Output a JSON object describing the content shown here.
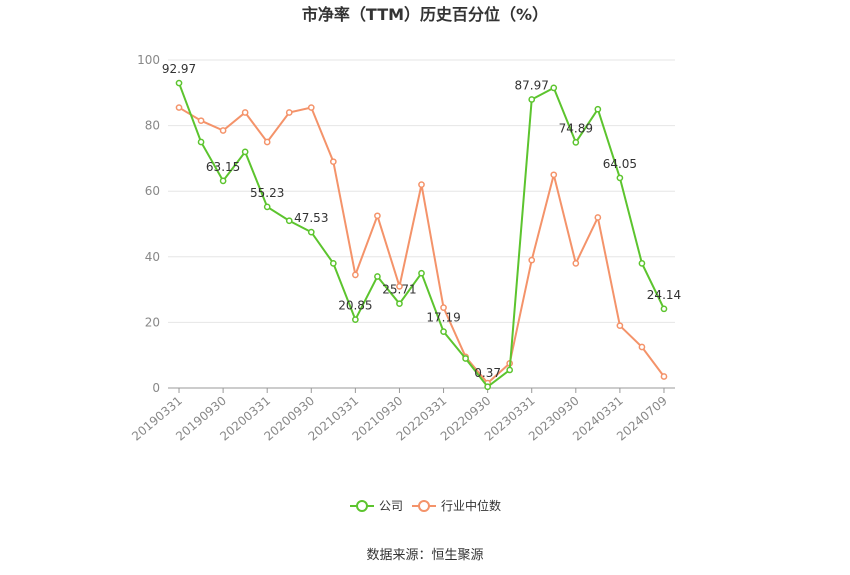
{
  "chart_data": {
    "type": "line",
    "title": "市净率（TTM）历史百分位（%）",
    "source": "数据来源：恒生聚源",
    "ylim": [
      0,
      100
    ],
    "yticks": [
      0,
      20,
      40,
      60,
      80,
      100
    ],
    "grid": true,
    "legend_position": "bottom",
    "xtick_labels": [
      "20190331",
      "20190930",
      "20200331",
      "20200930",
      "20210331",
      "20210930",
      "20220331",
      "20220930",
      "20230331",
      "20230930",
      "20240331",
      "20240709"
    ],
    "x": [
      "20190331",
      "20190630",
      "20190930",
      "20191231",
      "20200331",
      "20200630",
      "20200930",
      "20201231",
      "20210331",
      "20210630",
      "20210930",
      "20211231",
      "20220331",
      "20220630",
      "20220930",
      "20221231",
      "20230331",
      "20230630",
      "20230930",
      "20231231",
      "20240331",
      "20240630",
      "20240709"
    ],
    "series": [
      {
        "name": "公司",
        "color": "#5cc42e",
        "values": [
          92.97,
          75.0,
          63.15,
          72.0,
          55.23,
          51.0,
          47.53,
          38.0,
          20.85,
          34.0,
          25.71,
          35.0,
          17.19,
          9.0,
          0.37,
          5.5,
          87.97,
          91.5,
          74.89,
          85.0,
          64.05,
          38.0,
          24.14
        ],
        "labeled": [
          "92.97",
          null,
          "63.15",
          null,
          "55.23",
          null,
          "47.53",
          null,
          "20.85",
          null,
          "25.71",
          null,
          "17.19",
          null,
          "0.37",
          null,
          "87.97",
          null,
          "74.89",
          null,
          "64.05",
          null,
          "24.14"
        ]
      },
      {
        "name": "行业中位数",
        "color": "#f4936a",
        "values": [
          85.5,
          81.5,
          78.5,
          84.0,
          75.0,
          84.0,
          85.5,
          69.0,
          34.5,
          52.5,
          31.0,
          62.0,
          24.5,
          9.5,
          1.5,
          7.5,
          39.0,
          65.0,
          38.0,
          52.0,
          19.0,
          12.5,
          3.5
        ]
      }
    ]
  }
}
